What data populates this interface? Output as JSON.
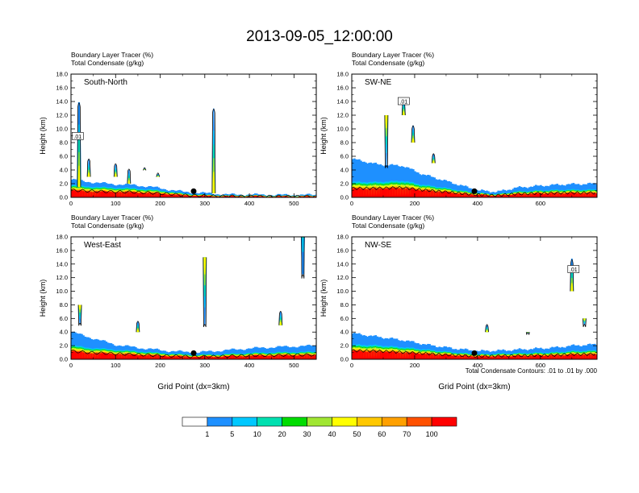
{
  "title": "2013-09-05_12:00:00",
  "chart_data": [
    {
      "type": "heatmap",
      "label": "South-North",
      "subtitle_1": "Boundary Layer Tracer   (%)",
      "subtitle_2": "Total Condensate   (g/kg)",
      "ylabel": "Height (km)",
      "xlabel": "",
      "xlim": [
        0,
        550
      ],
      "ylim": [
        0,
        18
      ],
      "xticks": [
        "0",
        "100",
        "200",
        "300",
        "400",
        "500"
      ],
      "xtick_values": [
        0,
        100,
        200,
        300,
        400,
        500
      ],
      "yticks": [
        "0.0",
        "2.0",
        "4.0",
        "6.0",
        "8.0",
        "10.0",
        "12.0",
        "14.0",
        "16.0",
        "18.0"
      ],
      "contour_label": ".01",
      "contour_label_at": [
        15,
        8.9
      ],
      "marker_at": [
        275,
        0.9
      ],
      "tracer_base": [
        [
          0,
          1.9,
          2.6
        ],
        [
          20,
          1.8,
          2.4
        ],
        [
          60,
          1.6,
          2.1
        ],
        [
          100,
          1.5,
          1.9
        ],
        [
          140,
          1.4,
          1.8
        ],
        [
          180,
          1.2,
          1.5
        ],
        [
          220,
          0.9,
          1.1
        ],
        [
          250,
          0.6,
          0.8
        ],
        [
          300,
          0.4,
          0.6
        ],
        [
          350,
          0.3,
          0.4
        ],
        [
          400,
          0.3,
          0.4
        ],
        [
          450,
          0.25,
          0.35
        ],
        [
          500,
          0.25,
          0.35
        ],
        [
          550,
          0.25,
          0.35
        ]
      ],
      "plumes": [
        [
          18,
          1.5,
          5,
          13.9
        ],
        [
          40,
          3,
          2,
          5.5
        ],
        [
          100,
          3,
          2,
          4.8
        ],
        [
          130,
          2,
          2,
          4.0
        ],
        [
          165,
          4,
          2,
          4.2
        ],
        [
          195,
          3,
          1.5,
          3.4
        ],
        [
          320,
          0.6,
          1.2,
          13.0
        ]
      ]
    },
    {
      "type": "heatmap",
      "label": "SW-NE",
      "subtitle_1": "Boundary Layer Tracer   (%)",
      "subtitle_2": "Total Condensate   (g/kg)",
      "ylabel": "Height (km)",
      "xlabel": "",
      "xlim": [
        0,
        780
      ],
      "ylim": [
        0,
        18
      ],
      "xticks": [
        "0",
        "200",
        "400",
        "600"
      ],
      "xtick_values": [
        0,
        200,
        400,
        600
      ],
      "yticks": [
        "0.0",
        "2.0",
        "4.0",
        "6.0",
        "8.0",
        "10.0",
        "12.0",
        "14.0",
        "16.0",
        "18.0"
      ],
      "contour_label": ".01",
      "contour_label_at": [
        165,
        14.0
      ],
      "marker_at": [
        390,
        0.9
      ],
      "tracer_base": [
        [
          0,
          2.4,
          5.6
        ],
        [
          80,
          2.4,
          4.8
        ],
        [
          160,
          2.6,
          4.6
        ],
        [
          220,
          2.0,
          3.4
        ],
        [
          280,
          1.6,
          2.6
        ],
        [
          340,
          1.1,
          1.8
        ],
        [
          400,
          0.7,
          1.0
        ],
        [
          460,
          0.5,
          0.8
        ],
        [
          520,
          0.9,
          1.4
        ],
        [
          600,
          1.1,
          1.7
        ],
        [
          680,
          1.2,
          1.9
        ],
        [
          780,
          1.2,
          2.0
        ]
      ],
      "plumes": [
        [
          165,
          12,
          6,
          14.2
        ],
        [
          195,
          8,
          2.5,
          10.5
        ],
        [
          110,
          12,
          3,
          4.5
        ],
        [
          260,
          5,
          2,
          6.3
        ]
      ]
    },
    {
      "type": "heatmap",
      "label": "West-East",
      "subtitle_1": "Boundary Layer Tracer   (%)",
      "subtitle_2": "Total Condensate   (g/kg)",
      "ylabel": "Height (km)",
      "xlabel": "Grid Point (dx=3km)",
      "xlim": [
        0,
        550
      ],
      "ylim": [
        0,
        18
      ],
      "xticks": [
        "0",
        "100",
        "200",
        "300",
        "400",
        "500"
      ],
      "xtick_values": [
        0,
        100,
        200,
        300,
        400,
        500
      ],
      "yticks": [
        "0.0",
        "2.0",
        "4.0",
        "6.0",
        "8.0",
        "10.0",
        "12.0",
        "14.0",
        "16.0",
        "18.0"
      ],
      "contour_label": "",
      "contour_label_at": [
        0,
        0
      ],
      "marker_at": [
        275,
        0.9
      ],
      "tracer_base": [
        [
          0,
          2.2,
          4.0
        ],
        [
          40,
          1.8,
          3.2
        ],
        [
          100,
          1.5,
          2.1
        ],
        [
          160,
          1.2,
          1.6
        ],
        [
          220,
          0.9,
          1.2
        ],
        [
          280,
          0.7,
          1.0
        ],
        [
          340,
          0.8,
          1.3
        ],
        [
          400,
          1.0,
          1.6
        ],
        [
          460,
          1.1,
          1.8
        ],
        [
          550,
          1.2,
          2.0
        ]
      ],
      "plumes": [
        [
          20,
          8,
          3,
          5.2
        ],
        [
          150,
          4,
          3,
          5.5
        ],
        [
          300,
          15,
          3,
          5.0
        ],
        [
          520,
          25,
          6,
          12.5
        ],
        [
          470,
          5,
          2,
          7.0
        ]
      ]
    },
    {
      "type": "heatmap",
      "label": "NW-SE",
      "subtitle_1": "Boundary Layer Tracer   (%)",
      "subtitle_2": "Total Condensate   (g/kg)",
      "ylabel": "Height (km)",
      "xlabel": "Grid Point (dx=3km)",
      "xlim": [
        0,
        780
      ],
      "ylim": [
        0,
        18
      ],
      "xticks": [
        "0",
        "200",
        "400",
        "600"
      ],
      "xtick_values": [
        0,
        200,
        400,
        600
      ],
      "yticks": [
        "0.0",
        "2.0",
        "4.0",
        "6.0",
        "8.0",
        "10.0",
        "12.0",
        "14.0",
        "16.0",
        "18.0"
      ],
      "contour_label": ".01",
      "contour_label_at": [
        705,
        13.2
      ],
      "marker_at": [
        390,
        0.9
      ],
      "tracer_base": [
        [
          0,
          2.3,
          3.8
        ],
        [
          80,
          2.2,
          3.3
        ],
        [
          160,
          1.9,
          2.8
        ],
        [
          240,
          1.5,
          2.1
        ],
        [
          320,
          1.1,
          1.6
        ],
        [
          400,
          0.8,
          1.2
        ],
        [
          480,
          0.9,
          1.3
        ],
        [
          560,
          1.0,
          1.5
        ],
        [
          640,
          1.1,
          1.7
        ],
        [
          700,
          1.3,
          2.0
        ],
        [
          780,
          1.4,
          2.2
        ]
      ],
      "plumes": [
        [
          700,
          10,
          6,
          14.8
        ],
        [
          430,
          4,
          2,
          5.0
        ],
        [
          560,
          4,
          2,
          3.8
        ],
        [
          740,
          6,
          2,
          5.0
        ]
      ]
    }
  ],
  "footnote": "Total Condensate Contours: .01 to .01 by .000",
  "colorbar": {
    "labels": [
      "1",
      "5",
      "10",
      "20",
      "30",
      "40",
      "50",
      "60",
      "70",
      "100"
    ],
    "colors": [
      "#ffffff",
      "#1e90ff",
      "#00c8ff",
      "#00e0b0",
      "#00dc00",
      "#a0e632",
      "#ffff00",
      "#ffc800",
      "#ffa000",
      "#ff5000",
      "#ff0000"
    ]
  }
}
